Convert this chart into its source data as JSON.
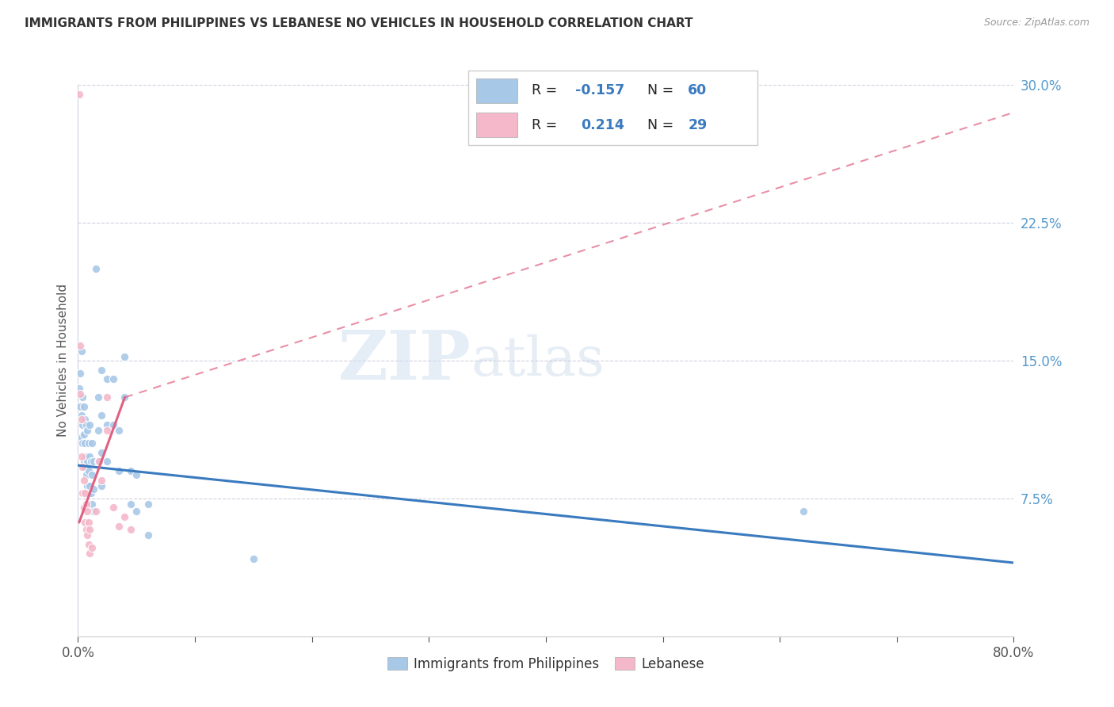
{
  "title": "IMMIGRANTS FROM PHILIPPINES VS LEBANESE NO VEHICLES IN HOUSEHOLD CORRELATION CHART",
  "source": "Source: ZipAtlas.com",
  "ylabel": "No Vehicles in Household",
  "xlim": [
    0.0,
    0.8
  ],
  "ylim": [
    0.0,
    0.3
  ],
  "xticks": [
    0.0,
    0.1,
    0.2,
    0.3,
    0.4,
    0.5,
    0.6,
    0.7,
    0.8
  ],
  "yticks_right": [
    0.075,
    0.15,
    0.225,
    0.3
  ],
  "ytick_labels_right": [
    "7.5%",
    "15.0%",
    "22.5%",
    "30.0%"
  ],
  "watermark": "ZIPatlas",
  "blue_color": "#a8c8e8",
  "pink_color": "#f4b8ca",
  "blue_line_color": "#3a7abf",
  "pink_line_color": "#e06080",
  "right_tick_color": "#5599cc",
  "legend_blue_r": "-0.157",
  "legend_blue_n": "60",
  "legend_pink_r": "0.214",
  "legend_pink_n": "29",
  "blue_scatter": [
    [
      0.001,
      0.135
    ],
    [
      0.002,
      0.143
    ],
    [
      0.002,
      0.125
    ],
    [
      0.003,
      0.155
    ],
    [
      0.003,
      0.12
    ],
    [
      0.003,
      0.108
    ],
    [
      0.004,
      0.13
    ],
    [
      0.004,
      0.115
    ],
    [
      0.004,
      0.105
    ],
    [
      0.005,
      0.125
    ],
    [
      0.005,
      0.11
    ],
    [
      0.005,
      0.095
    ],
    [
      0.006,
      0.118
    ],
    [
      0.006,
      0.105
    ],
    [
      0.006,
      0.092
    ],
    [
      0.007,
      0.115
    ],
    [
      0.007,
      0.098
    ],
    [
      0.007,
      0.088
    ],
    [
      0.008,
      0.112
    ],
    [
      0.008,
      0.095
    ],
    [
      0.008,
      0.082
    ],
    [
      0.009,
      0.105
    ],
    [
      0.009,
      0.09
    ],
    [
      0.009,
      0.078
    ],
    [
      0.01,
      0.115
    ],
    [
      0.01,
      0.098
    ],
    [
      0.01,
      0.082
    ],
    [
      0.011,
      0.095
    ],
    [
      0.011,
      0.078
    ],
    [
      0.012,
      0.105
    ],
    [
      0.012,
      0.088
    ],
    [
      0.012,
      0.072
    ],
    [
      0.013,
      0.095
    ],
    [
      0.013,
      0.08
    ],
    [
      0.013,
      0.068
    ],
    [
      0.015,
      0.2
    ],
    [
      0.017,
      0.13
    ],
    [
      0.017,
      0.112
    ],
    [
      0.017,
      0.095
    ],
    [
      0.02,
      0.145
    ],
    [
      0.02,
      0.12
    ],
    [
      0.02,
      0.1
    ],
    [
      0.02,
      0.082
    ],
    [
      0.025,
      0.14
    ],
    [
      0.025,
      0.115
    ],
    [
      0.025,
      0.095
    ],
    [
      0.03,
      0.14
    ],
    [
      0.03,
      0.115
    ],
    [
      0.035,
      0.112
    ],
    [
      0.035,
      0.09
    ],
    [
      0.04,
      0.152
    ],
    [
      0.04,
      0.13
    ],
    [
      0.045,
      0.09
    ],
    [
      0.045,
      0.072
    ],
    [
      0.05,
      0.088
    ],
    [
      0.05,
      0.068
    ],
    [
      0.06,
      0.072
    ],
    [
      0.06,
      0.055
    ],
    [
      0.15,
      0.042
    ],
    [
      0.62,
      0.068
    ]
  ],
  "pink_scatter": [
    [
      0.001,
      0.295
    ],
    [
      0.002,
      0.158
    ],
    [
      0.002,
      0.132
    ],
    [
      0.003,
      0.118
    ],
    [
      0.003,
      0.098
    ],
    [
      0.004,
      0.092
    ],
    [
      0.004,
      0.078
    ],
    [
      0.005,
      0.085
    ],
    [
      0.005,
      0.07
    ],
    [
      0.006,
      0.078
    ],
    [
      0.006,
      0.062
    ],
    [
      0.007,
      0.072
    ],
    [
      0.007,
      0.058
    ],
    [
      0.008,
      0.068
    ],
    [
      0.008,
      0.055
    ],
    [
      0.009,
      0.062
    ],
    [
      0.009,
      0.05
    ],
    [
      0.01,
      0.058
    ],
    [
      0.01,
      0.045
    ],
    [
      0.012,
      0.048
    ],
    [
      0.015,
      0.068
    ],
    [
      0.018,
      0.095
    ],
    [
      0.02,
      0.085
    ],
    [
      0.025,
      0.13
    ],
    [
      0.025,
      0.112
    ],
    [
      0.03,
      0.07
    ],
    [
      0.035,
      0.06
    ],
    [
      0.04,
      0.065
    ],
    [
      0.045,
      0.058
    ]
  ],
  "blue_line_x0": 0.0,
  "blue_line_x1": 0.8,
  "blue_line_y0": 0.093,
  "blue_line_y1": 0.04,
  "pink_line_solid_x0": 0.001,
  "pink_line_solid_x1": 0.04,
  "pink_line_solid_y0": 0.062,
  "pink_line_solid_y1": 0.13,
  "pink_line_dash_x0": 0.04,
  "pink_line_dash_x1": 0.8,
  "pink_line_dash_y0": 0.13,
  "pink_line_dash_y1": 0.285
}
